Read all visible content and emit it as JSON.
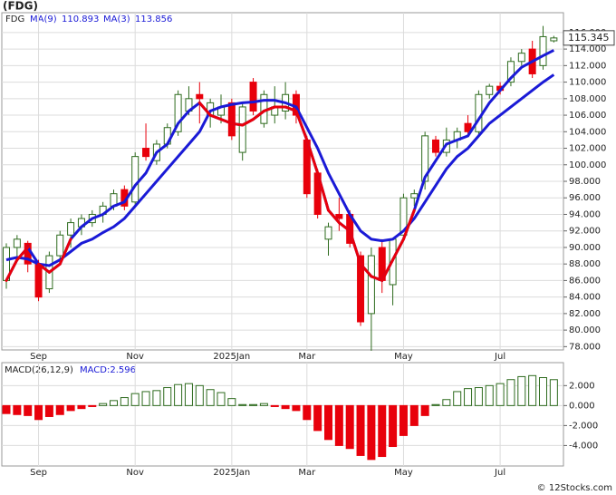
{
  "chart_data": [
    {
      "type": "candlestick",
      "title": "(FDG)",
      "symbol": "FDG",
      "categories": [
        null,
        null,
        null,
        "Sep",
        null,
        null,
        null,
        null,
        null,
        null,
        null,
        null,
        "Nov",
        null,
        null,
        null,
        null,
        null,
        null,
        null,
        null,
        "2025Jan",
        null,
        null,
        null,
        null,
        null,
        null,
        "Mar",
        null,
        null,
        null,
        null,
        null,
        null,
        null,
        null,
        "May",
        null,
        null,
        null,
        null,
        null,
        null,
        null,
        null,
        "Jul",
        null,
        null,
        null,
        null,
        null
      ],
      "open": [
        86,
        90,
        90.5,
        88,
        85,
        89,
        91.5,
        92.5,
        93,
        94,
        95,
        97,
        95.5,
        102,
        100.5,
        102.5,
        104,
        106.5,
        108.5,
        106,
        106,
        107.5,
        101.5,
        110,
        105,
        106,
        106.5,
        108.5,
        103,
        99,
        91,
        94,
        94,
        89,
        82,
        90,
        85.5,
        91.5,
        96,
        98,
        103,
        101.5,
        103,
        105,
        104,
        108.5,
        109.5,
        110,
        112.5,
        114,
        112,
        115
      ],
      "high": [
        90.5,
        91.5,
        90.8,
        88.5,
        89.5,
        92,
        93.5,
        94,
        94.5,
        95.5,
        97,
        97.5,
        101.5,
        105,
        103,
        105,
        109,
        109.5,
        110,
        108,
        108.5,
        108,
        107.5,
        110.5,
        109,
        109.5,
        110,
        109,
        103.5,
        99.5,
        93,
        96,
        94.5,
        89.5,
        90,
        91,
        91,
        96.5,
        97,
        104,
        103.5,
        104.5,
        104.5,
        106,
        109,
        109.8,
        110,
        113,
        114,
        115,
        116.8,
        115.6
      ],
      "low": [
        85,
        88.5,
        87,
        83.5,
        84.5,
        88.5,
        90,
        91.5,
        92.5,
        93,
        94.5,
        94.5,
        95,
        100.5,
        100,
        102,
        103.5,
        106,
        105,
        104.5,
        105,
        103,
        100.5,
        106,
        104.5,
        105,
        105.5,
        105,
        96,
        93.5,
        89,
        92,
        90,
        80.5,
        77.5,
        84.5,
        83,
        91,
        95,
        97,
        101,
        101,
        102,
        103.5,
        103.5,
        108,
        108.5,
        109.5,
        112,
        110.5,
        111.5,
        114.8
      ],
      "close": [
        90,
        91,
        88,
        84,
        89,
        91.5,
        93,
        93.5,
        94,
        95,
        96.5,
        95,
        101,
        101,
        102.5,
        104.5,
        108.5,
        108,
        108,
        107.5,
        107,
        103.5,
        107,
        106.5,
        108.5,
        107,
        108.5,
        106,
        96.5,
        94,
        92.5,
        93.5,
        90.5,
        81,
        89,
        86,
        91,
        96,
        96.5,
        103.5,
        101.5,
        103,
        104,
        104,
        108.5,
        109.5,
        109,
        112.5,
        113.5,
        111,
        115.5,
        115.345
      ],
      "up_color": "#2e6b1e",
      "down_color": "#e8000b",
      "series": [
        {
          "name": "MA(9)",
          "color": "#1a1ad6",
          "values": [
            88.5,
            88.8,
            88.6,
            88,
            87.8,
            88.5,
            89.5,
            90.5,
            91,
            91.8,
            92.5,
            93.5,
            95,
            96.5,
            98,
            99.5,
            101,
            102.5,
            104,
            106.5,
            107,
            107.3,
            107.5,
            107.6,
            107.8,
            107.8,
            107.5,
            107,
            104.5,
            102,
            99,
            96.5,
            94,
            92,
            91,
            90.8,
            91,
            92,
            93.5,
            95.5,
            97.5,
            99.5,
            101,
            102,
            103.5,
            105,
            106,
            107,
            108,
            109,
            110,
            110.893
          ]
        },
        {
          "name": "MA(3)",
          "color": "#1a1ad6",
          "below_color": "#e8000b",
          "values": [
            86,
            88.5,
            90,
            88,
            87,
            88,
            91,
            92.5,
            93.5,
            94,
            95,
            95.5,
            97.5,
            99,
            101.5,
            102.5,
            105,
            106.5,
            107.5,
            106,
            105.5,
            105,
            104.8,
            105.5,
            106.5,
            107,
            107,
            106.5,
            103,
            99,
            94.5,
            93,
            92,
            88,
            86.5,
            86,
            88.5,
            91,
            94.5,
            98.5,
            100.5,
            102.5,
            103,
            103.5,
            105.5,
            107.5,
            109,
            110.5,
            111.8,
            112.5,
            113.2,
            113.856
          ]
        }
      ],
      "ylim": [
        77.6,
        118.4
      ],
      "yticks": [
        {
          "value": 78,
          "label": "78.000"
        },
        {
          "value": 80,
          "label": "80.000"
        },
        {
          "value": 82,
          "label": "82.000"
        },
        {
          "value": 84,
          "label": "84.000"
        },
        {
          "value": 86,
          "label": "86.000"
        },
        {
          "value": 88,
          "label": "88.000"
        },
        {
          "value": 90,
          "label": "90.000"
        },
        {
          "value": 92,
          "label": "92.000"
        },
        {
          "value": 94,
          "label": "94.000"
        },
        {
          "value": 96,
          "label": "96.000"
        },
        {
          "value": 98,
          "label": "98.000"
        },
        {
          "value": 100,
          "label": "100.000"
        },
        {
          "value": 102,
          "label": "102.000"
        },
        {
          "value": 104,
          "label": "104.000"
        },
        {
          "value": 106,
          "label": "106.000"
        },
        {
          "value": 108,
          "label": "108.000"
        },
        {
          "value": 110,
          "label": "110.000"
        },
        {
          "value": 112,
          "label": "112.000"
        },
        {
          "value": 114,
          "label": "114.000"
        },
        {
          "value": 116,
          "label": "116.000"
        }
      ],
      "grid": true
    },
    {
      "type": "bar",
      "name": "MACD(26,12,9)",
      "value_label": "MACD:2.596",
      "categories": [
        null,
        null,
        null,
        "Sep",
        null,
        null,
        null,
        null,
        null,
        null,
        null,
        null,
        "Nov",
        null,
        null,
        null,
        null,
        null,
        null,
        null,
        null,
        "2025Jan",
        null,
        null,
        null,
        null,
        null,
        null,
        "Mar",
        null,
        null,
        null,
        null,
        null,
        null,
        null,
        null,
        "May",
        null,
        null,
        null,
        null,
        null,
        null,
        null,
        null,
        "Jul",
        null,
        null,
        null,
        null,
        null
      ],
      "values": [
        -0.8,
        -0.9,
        -1.0,
        -1.4,
        -1.1,
        -0.9,
        -0.5,
        -0.3,
        -0.1,
        0.2,
        0.5,
        0.8,
        1.2,
        1.4,
        1.5,
        1.8,
        2.1,
        2.2,
        2.0,
        1.6,
        1.3,
        0.7,
        0.1,
        0.1,
        0.2,
        -0.1,
        -0.3,
        -0.5,
        -1.4,
        -2.5,
        -3.4,
        -4.0,
        -4.3,
        -5.0,
        -5.4,
        -5.1,
        -4.1,
        -3.0,
        -2.0,
        -1.0,
        0.1,
        0.6,
        1.4,
        1.7,
        1.8,
        2.0,
        2.2,
        2.6,
        2.9,
        3.0,
        2.8,
        2.596
      ],
      "up_color": "#2e6b1e",
      "down_color": "#e8000b",
      "ylim": [
        -6.05,
        4.3
      ],
      "yticks": [
        {
          "value": -4,
          "label": "-4.000"
        },
        {
          "value": -2,
          "label": "-2.000"
        },
        {
          "value": 0,
          "label": "0.000"
        },
        {
          "value": 2,
          "label": "2.000"
        }
      ],
      "grid": true
    }
  ],
  "watermark": "© 12Stocks.com"
}
